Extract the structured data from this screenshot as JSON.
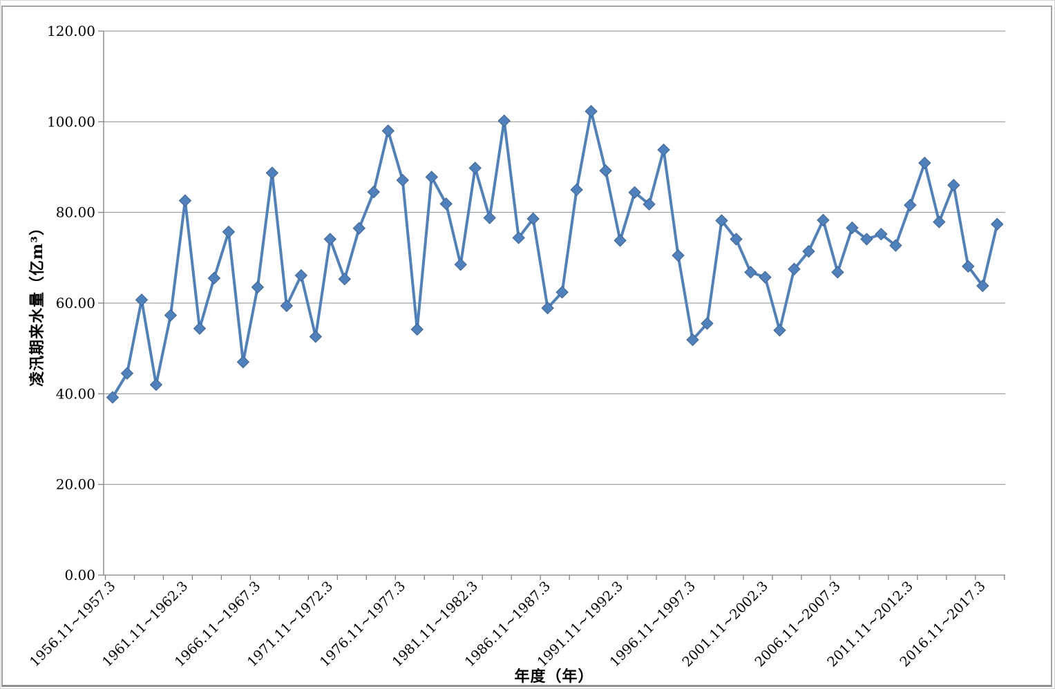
{
  "chart_data": {
    "type": "line",
    "title": "",
    "ylabel": "凌汛期来水量（亿m³）",
    "xlabel": "年度（年）",
    "ylim": [
      0,
      120
    ],
    "ytick_step": 20,
    "ytick_decimals": 2,
    "grid": "horizontal gridlines on, gray",
    "legend_position": "none",
    "series_name": "凌汛期来水量",
    "line_color": "#4F81BD",
    "marker": "diamond",
    "marker_edge_color": "#3B6395",
    "axis_color": "#808080",
    "gridline_color": "#8C8C8C",
    "x_label_interval": 5,
    "categories": [
      "1956.11~1957.3",
      "1957.11~1958.3",
      "1958.11~1959.3",
      "1959.11~1960.3",
      "1960.11~1961.3",
      "1961.11~1962.3",
      "1962.11~1963.3",
      "1963.11~1964.3",
      "1964.11~1965.3",
      "1965.11~1966.3",
      "1966.11~1967.3",
      "1967.11~1968.3",
      "1968.11~1969.3",
      "1969.11~1970.3",
      "1970.11~1971.3",
      "1971.11~1972.3",
      "1972.11~1973.3",
      "1973.11~1974.3",
      "1974.11~1975.3",
      "1975.11~1976.3",
      "1976.11~1977.3",
      "1977.11~1978.3",
      "1978.11~1979.3",
      "1979.11~1980.3",
      "1980.11~1981.3",
      "1981.11~1982.3",
      "1982.11~1983.3",
      "1983.11~1984.3",
      "1984.11~1985.3",
      "1985.11~1986.3",
      "1986.11~1987.3",
      "1987.11~1988.3",
      "1988.11~1989.3",
      "1989.11~1990.3",
      "1990.11~1991.3",
      "1991.11~1992.3",
      "1992.11~1993.3",
      "1993.11~1994.3",
      "1994.11~1995.3",
      "1995.11~1996.3",
      "1996.11~1997.3",
      "1997.11~1998.3",
      "1998.11~1999.3",
      "1999.11~2000.3",
      "2000.11~2001.3",
      "2001.11~2002.3",
      "2002.11~2003.3",
      "2003.11~2004.3",
      "2004.11~2005.3",
      "2005.11~2006.3",
      "2006.11~2007.3",
      "2007.11~2008.3",
      "2008.11~2009.3",
      "2009.11~2010.3",
      "2010.11~2011.3",
      "2011.11~2012.3",
      "2012.11~2013.3",
      "2013.11~2014.3",
      "2014.11~2015.3",
      "2015.11~2016.3",
      "2016.11~2017.3",
      "2017.11~2018.3"
    ],
    "values": [
      39.2,
      44.5,
      60.7,
      42.0,
      57.3,
      82.6,
      54.4,
      65.5,
      75.7,
      47.0,
      63.5,
      88.7,
      59.4,
      66.1,
      52.6,
      74.1,
      65.3,
      76.5,
      84.5,
      98.0,
      87.1,
      54.2,
      87.8,
      81.9,
      68.5,
      89.8,
      78.8,
      100.2,
      74.4,
      78.6,
      58.9,
      62.4,
      85.0,
      102.3,
      89.2,
      73.8,
      84.4,
      81.8,
      93.8,
      70.5,
      51.9,
      55.5,
      78.2,
      74.1,
      66.8,
      65.7,
      54.0,
      67.5,
      71.4,
      78.3,
      66.8,
      76.6,
      74.1,
      75.2,
      72.7,
      81.6,
      90.9,
      77.9,
      86.0,
      68.1,
      63.8,
      77.4
    ],
    "shown_x_tick_labels": [
      "1956.11~1957.3",
      "1961.11~1962.3",
      "1966.11~1967.3",
      "1971.11~1972.3",
      "1976.11~1977.3",
      "1981.11~1982.3",
      "1986.11~1987.3",
      "1991.11~1992.3",
      "1996.11~1997.3",
      "2001.11~2002.3",
      "2006.11~2007.3",
      "2011.11~2012.3",
      "2016.11~2017.3"
    ],
    "shown_y_tick_labels": [
      "0.00",
      "20.00",
      "40.00",
      "60.00",
      "80.00",
      "100.00",
      "120.00"
    ]
  }
}
